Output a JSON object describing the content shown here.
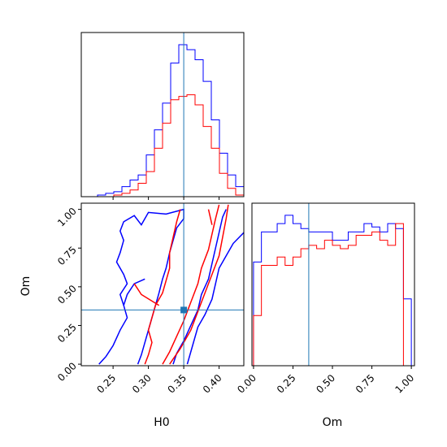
{
  "chart_data": {
    "type": "corner",
    "parameters": [
      "H0",
      "Om"
    ],
    "truths": {
      "H0": 0.35,
      "Om": 0.35
    },
    "truth_color": "#1f77b4",
    "series": [
      {
        "color": "#0000ff"
      },
      {
        "color": "#ff0000"
      }
    ],
    "panels": {
      "H0_hist": {
        "xlim": [
          0.205,
          0.435
        ],
        "xticks": [
          0.25,
          0.3,
          0.35,
          0.4
        ],
        "bin_edges": [
          0.205,
          0.2165,
          0.228,
          0.2395,
          0.251,
          0.2625,
          0.274,
          0.2855,
          0.297,
          0.3085,
          0.32,
          0.3315,
          0.343,
          0.3545,
          0.366,
          0.3775,
          0.389,
          0.4005,
          0.412,
          0.4235,
          0.435
        ],
        "series_values": [
          [
            0,
            0,
            0.01,
            0.02,
            0.03,
            0.06,
            0.1,
            0.13,
            0.25,
            0.4,
            0.56,
            0.8,
            0.91,
            0.88,
            0.82,
            0.69,
            0.46,
            0.26,
            0.13,
            0.06
          ],
          [
            0,
            0,
            0,
            0,
            0.01,
            0.02,
            0.04,
            0.08,
            0.15,
            0.29,
            0.44,
            0.58,
            0.6,
            0.61,
            0.55,
            0.42,
            0.29,
            0.14,
            0.05,
            0.01
          ]
        ]
      },
      "Om_hist": {
        "xlim": [
          -0.01,
          1.02
        ],
        "xticks": [
          0.0,
          0.25,
          0.5,
          0.75,
          1.0
        ],
        "xticklabels": [
          "0.00",
          "0.25",
          "0.50",
          "0.75",
          "1.00"
        ],
        "bin_edges": [
          0,
          0.05,
          0.1,
          0.15,
          0.2,
          0.25,
          0.3,
          0.35,
          0.4,
          0.45,
          0.5,
          0.55,
          0.6,
          0.65,
          0.7,
          0.75,
          0.8,
          0.85,
          0.9,
          0.95,
          1.0
        ],
        "series_values": [
          [
            0.62,
            0.8,
            0.8,
            0.85,
            0.9,
            0.85,
            0.82,
            0.8,
            0.8,
            0.8,
            0.75,
            0.75,
            0.8,
            0.8,
            0.85,
            0.83,
            0.8,
            0.85,
            0.82,
            0.4
          ],
          [
            0.3,
            0.6,
            0.6,
            0.65,
            0.6,
            0.65,
            0.7,
            0.72,
            0.7,
            0.75,
            0.72,
            0.7,
            0.72,
            0.78,
            0.78,
            0.8,
            0.75,
            0.72,
            0.85,
            0.0
          ]
        ]
      },
      "H0_Om_contours": {
        "xlim": [
          0.205,
          0.435
        ],
        "ylim": [
          -0.01,
          1.04
        ],
        "xticks": [
          0.25,
          0.3,
          0.35,
          0.4
        ],
        "xticklabels": [
          "0.25",
          "0.30",
          "0.35",
          "0.40"
        ],
        "yticks": [
          0.0,
          0.25,
          0.5,
          0.75,
          1.0
        ],
        "yticklabels": [
          "0.00",
          "0.25",
          "0.50",
          "0.75",
          "1.00"
        ],
        "xlabel": "H0",
        "ylabel": "Om",
        "series_contours": [
          [
            [
              [
                0.23,
                0.0
              ],
              [
                0.24,
                0.05
              ],
              [
                0.25,
                0.12
              ],
              [
                0.26,
                0.22
              ],
              [
                0.27,
                0.3
              ],
              [
                0.265,
                0.38
              ],
              [
                0.26,
                0.45
              ],
              [
                0.27,
                0.52
              ],
              [
                0.265,
                0.58
              ],
              [
                0.255,
                0.66
              ],
              [
                0.26,
                0.72
              ],
              [
                0.265,
                0.8
              ],
              [
                0.26,
                0.86
              ],
              [
                0.265,
                0.92
              ],
              [
                0.28,
                0.96
              ],
              [
                0.29,
                0.9
              ],
              [
                0.3,
                0.98
              ],
              [
                0.325,
                0.97
              ],
              [
                0.35,
                1.0
              ],
              [
                0.35,
                0.94
              ],
              [
                0.34,
                0.88
              ],
              [
                0.335,
                0.8
              ],
              [
                0.33,
                0.72
              ],
              [
                0.325,
                0.62
              ],
              [
                0.32,
                0.55
              ],
              [
                0.315,
                0.46
              ],
              [
                0.31,
                0.38
              ],
              [
                0.305,
                0.3
              ],
              [
                0.3,
                0.22
              ],
              [
                0.295,
                0.14
              ],
              [
                0.29,
                0.06
              ],
              [
                0.285,
                0.0
              ]
            ],
            [
              [
                0.355,
                0.0
              ],
              [
                0.36,
                0.08
              ],
              [
                0.365,
                0.16
              ],
              [
                0.37,
                0.24
              ],
              [
                0.38,
                0.32
              ],
              [
                0.39,
                0.42
              ],
              [
                0.395,
                0.52
              ],
              [
                0.4,
                0.62
              ],
              [
                0.41,
                0.7
              ],
              [
                0.42,
                0.78
              ],
              [
                0.435,
                0.85
              ]
            ],
            [
              [
                0.335,
                0.0
              ],
              [
                0.34,
                0.07
              ],
              [
                0.35,
                0.15
              ],
              [
                0.36,
                0.25
              ],
              [
                0.37,
                0.35
              ],
              [
                0.375,
                0.45
              ],
              [
                0.385,
                0.55
              ],
              [
                0.39,
                0.65
              ],
              [
                0.395,
                0.75
              ],
              [
                0.4,
                0.85
              ],
              [
                0.405,
                0.95
              ],
              [
                0.41,
                1.0
              ]
            ],
            [
              [
                0.295,
                0.55
              ],
              [
                0.28,
                0.52
              ],
              [
                0.27,
                0.45
              ],
              [
                0.265,
                0.38
              ]
            ]
          ],
          [
            [
              [
                0.295,
                0.0
              ],
              [
                0.3,
                0.06
              ],
              [
                0.305,
                0.14
              ],
              [
                0.3,
                0.22
              ],
              [
                0.305,
                0.3
              ],
              [
                0.31,
                0.38
              ],
              [
                0.32,
                0.46
              ],
              [
                0.325,
                0.54
              ],
              [
                0.33,
                0.62
              ],
              [
                0.33,
                0.72
              ],
              [
                0.335,
                0.82
              ],
              [
                0.34,
                0.92
              ],
              [
                0.345,
                1.0
              ]
            ],
            [
              [
                0.32,
                0.0
              ],
              [
                0.33,
                0.08
              ],
              [
                0.34,
                0.18
              ],
              [
                0.35,
                0.28
              ],
              [
                0.36,
                0.4
              ],
              [
                0.37,
                0.52
              ],
              [
                0.375,
                0.62
              ],
              [
                0.385,
                0.74
              ],
              [
                0.39,
                0.84
              ],
              [
                0.395,
                0.94
              ],
              [
                0.4,
                1.03
              ]
            ],
            [
              [
                0.33,
                0.0
              ],
              [
                0.345,
                0.1
              ],
              [
                0.36,
                0.22
              ],
              [
                0.37,
                0.34
              ],
              [
                0.38,
                0.46
              ],
              [
                0.39,
                0.58
              ],
              [
                0.4,
                0.7
              ],
              [
                0.405,
                0.82
              ],
              [
                0.41,
                0.94
              ],
              [
                0.413,
                1.03
              ]
            ],
            [
              [
                0.385,
                1.0
              ],
              [
                0.39,
                0.9
              ]
            ],
            [
              [
                0.28,
                0.52
              ],
              [
                0.29,
                0.45
              ],
              [
                0.315,
                0.38
              ]
            ]
          ]
        ]
      }
    }
  }
}
